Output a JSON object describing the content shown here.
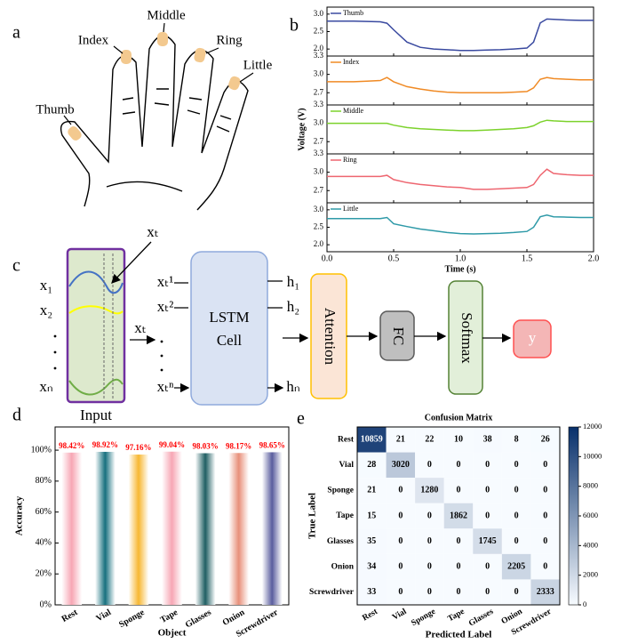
{
  "panel_labels": [
    "a",
    "b",
    "c",
    "d",
    "e"
  ],
  "hand": {
    "fingers": [
      "Middle",
      "Index",
      "Ring",
      "Little",
      "Thumb"
    ]
  },
  "diagram": {
    "inputs": [
      "x₁",
      "x₂",
      "xₙ"
    ],
    "input_label": "Input",
    "window": "xₜ",
    "step": "xₜ",
    "steps": [
      "xₜ¹",
      "xₜ²",
      "xₜⁿ"
    ],
    "cell": [
      "LSTM",
      "Cell"
    ],
    "hidden": [
      "h₁",
      "h₂",
      "hₙ"
    ],
    "attention": "Attention",
    "fc": "FC",
    "softmax": "Softmax",
    "output": "y"
  },
  "chart_data": [
    {
      "type": "line",
      "xlabel": "Time (s)",
      "ylabel": "Voltage (V)",
      "x": [
        0,
        0.1,
        0.2,
        0.3,
        0.4,
        0.45,
        0.5,
        0.6,
        0.7,
        0.8,
        0.9,
        1.0,
        1.1,
        1.2,
        1.3,
        1.4,
        1.5,
        1.55,
        1.6,
        1.65,
        1.7,
        1.8,
        1.9,
        2.0
      ],
      "xlim": [
        0,
        2.0
      ],
      "xticks": [
        {
          "value": 0,
          "label": "0.0"
        },
        0.5,
        {
          "value": 1.0,
          "label": "1.0"
        },
        1.5,
        {
          "value": 2.0,
          "label": "2.0"
        }
      ],
      "series": [
        {
          "name": "Thumb",
          "color": "#3a4aa0",
          "ylim": [
            1.8,
            3.2
          ],
          "yticks": [
            {
              "value": 2.0,
              "label": "2.0"
            },
            2.5,
            {
              "value": 3.0,
              "label": "3.0"
            }
          ],
          "values": [
            2.8,
            2.8,
            2.8,
            2.79,
            2.78,
            2.74,
            2.55,
            2.2,
            2.05,
            2.0,
            1.98,
            1.96,
            1.96,
            1.97,
            1.98,
            2.0,
            2.03,
            2.2,
            2.75,
            2.86,
            2.85,
            2.83,
            2.82,
            2.82
          ]
        },
        {
          "name": "Index",
          "color": "#f08a24",
          "ylim": [
            2.5,
            3.3
          ],
          "yticks": [
            2.7,
            {
              "value": 3.0,
              "label": "3.0"
            },
            3.3
          ],
          "values": [
            2.88,
            2.88,
            2.88,
            2.89,
            2.9,
            2.95,
            2.88,
            2.8,
            2.76,
            2.73,
            2.71,
            2.7,
            2.7,
            2.7,
            2.7,
            2.71,
            2.72,
            2.78,
            2.92,
            2.95,
            2.93,
            2.92,
            2.91,
            2.91
          ]
        },
        {
          "name": "Middle",
          "color": "#7cd22c",
          "ylim": [
            2.5,
            3.3
          ],
          "yticks": [
            2.7,
            {
              "value": 3.0,
              "label": "3.0"
            },
            3.3
          ],
          "values": [
            3.0,
            3.0,
            3.0,
            3.0,
            3.0,
            3.0,
            2.97,
            2.93,
            2.91,
            2.9,
            2.89,
            2.88,
            2.88,
            2.89,
            2.9,
            2.91,
            2.93,
            2.96,
            3.02,
            3.05,
            3.04,
            3.03,
            3.03,
            3.03
          ]
        },
        {
          "name": "Ring",
          "color": "#ee6670",
          "ylim": [
            2.5,
            3.3
          ],
          "yticks": [
            2.7,
            {
              "value": 3.0,
              "label": "3.0"
            },
            3.3
          ],
          "values": [
            2.93,
            2.93,
            2.93,
            2.93,
            2.93,
            2.95,
            2.88,
            2.83,
            2.8,
            2.78,
            2.76,
            2.75,
            2.72,
            2.72,
            2.73,
            2.74,
            2.75,
            2.8,
            2.95,
            3.05,
            2.98,
            2.96,
            2.95,
            2.95
          ]
        },
        {
          "name": "Little",
          "color": "#2f9aa8",
          "ylim": [
            1.8,
            3.2
          ],
          "yticks": [
            {
              "value": 2.0,
              "label": "2.0"
            },
            2.5,
            {
              "value": 3.0,
              "label": "3.0"
            }
          ],
          "values": [
            2.75,
            2.75,
            2.75,
            2.75,
            2.75,
            2.78,
            2.6,
            2.52,
            2.45,
            2.4,
            2.35,
            2.32,
            2.31,
            2.32,
            2.33,
            2.35,
            2.38,
            2.5,
            2.8,
            2.85,
            2.8,
            2.79,
            2.78,
            2.78
          ]
        }
      ]
    },
    {
      "type": "bar",
      "xlabel": "Object",
      "ylabel": "Accuracy",
      "categories": [
        "Rest",
        "Vial",
        "Sponge",
        "Tape",
        "Glasses",
        "Onion",
        "Screwdriver"
      ],
      "values": [
        98.42,
        98.92,
        97.16,
        99.04,
        98.03,
        98.17,
        98.65
      ],
      "value_labels": [
        "98.42%",
        "98.92%",
        "97.16%",
        "99.04%",
        "98.03%",
        "98.17%",
        "98.65%"
      ],
      "colors": [
        "#f7a6b4",
        "#17707e",
        "#f7b731",
        "#f7a6b4",
        "#1f5f63",
        "#e8907a",
        "#5a5d9e"
      ],
      "label_color": "#ff0000",
      "ylim": [
        0,
        115
      ],
      "yticks": [
        {
          "value": 0,
          "label": "0%"
        },
        {
          "value": 20,
          "label": "20%"
        },
        {
          "value": 40,
          "label": "40%"
        },
        {
          "value": 60,
          "label": "60%"
        },
        {
          "value": 80,
          "label": "80%"
        },
        {
          "value": 100,
          "label": "100%"
        }
      ]
    },
    {
      "type": "heatmap",
      "title": "Confusion Matrix",
      "xlabel": "Predicted Label",
      "ylabel": "True Label",
      "categories": [
        "Rest",
        "Vial",
        "Sponge",
        "Tape",
        "Glasses",
        "Onion",
        "Screwdriver"
      ],
      "matrix": [
        [
          10859,
          21,
          22,
          10,
          38,
          8,
          26
        ],
        [
          28,
          3020,
          0,
          0,
          0,
          0,
          0
        ],
        [
          21,
          0,
          1280,
          0,
          0,
          0,
          0
        ],
        [
          15,
          0,
          0,
          1862,
          0,
          0,
          0
        ],
        [
          35,
          0,
          0,
          0,
          1745,
          0,
          0
        ],
        [
          34,
          0,
          0,
          0,
          0,
          2205,
          0
        ],
        [
          33,
          0,
          0,
          0,
          0,
          0,
          2333
        ]
      ],
      "colormap": [
        "#f7fbff",
        "#08306b"
      ],
      "clim": [
        0,
        12000
      ],
      "cticks": [
        0,
        2000,
        4000,
        6000,
        8000,
        10000,
        12000
      ]
    }
  ]
}
